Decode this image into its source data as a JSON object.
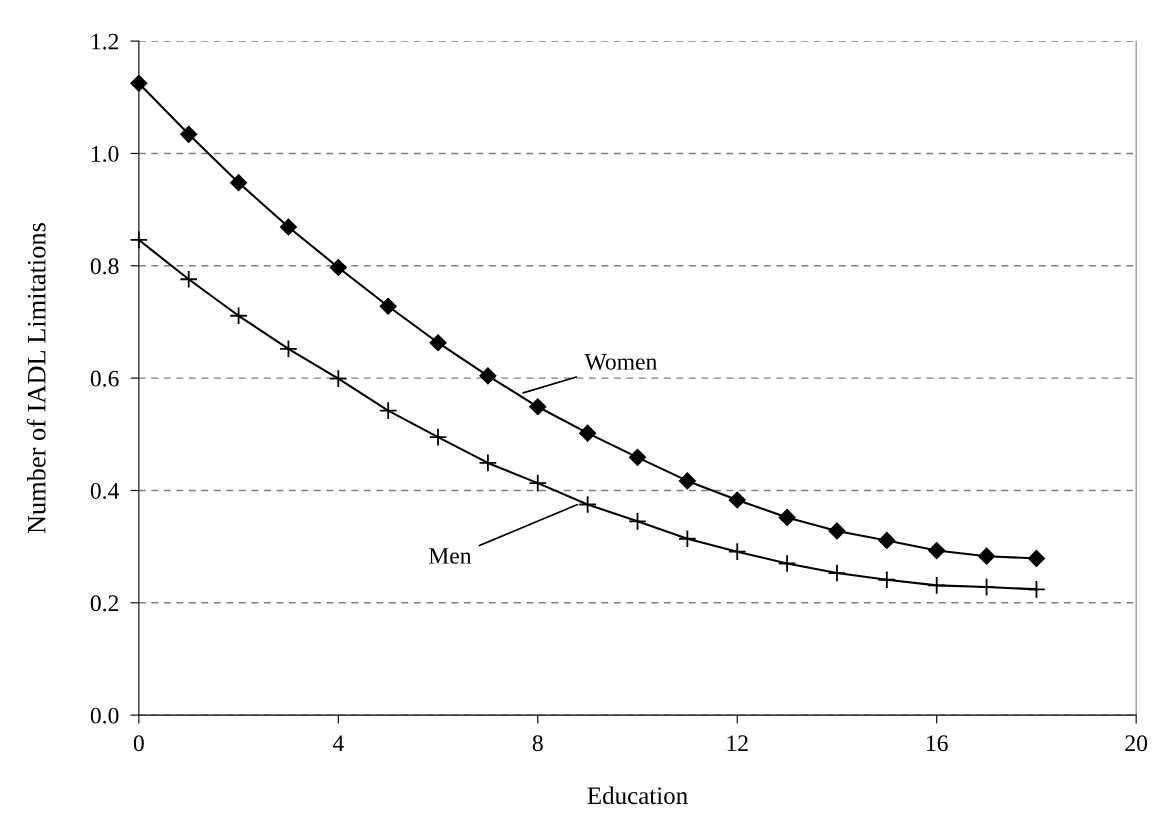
{
  "chart_data": {
    "type": "line",
    "xlabel": "Education",
    "ylabel": "Number of IADL Limitations",
    "x": [
      0,
      1,
      2,
      3,
      4,
      5,
      6,
      7,
      8,
      9,
      10,
      11,
      12,
      13,
      14,
      15,
      16,
      17,
      18
    ],
    "series": [
      {
        "name": "Women",
        "color": "#000000",
        "marker": "diamond",
        "values": [
          1.125,
          1.034,
          0.948,
          0.869,
          0.797,
          0.728,
          0.663,
          0.604,
          0.549,
          0.502,
          0.459,
          0.417,
          0.383,
          0.352,
          0.328,
          0.311,
          0.293,
          0.283,
          0.279
        ]
      },
      {
        "name": "Men",
        "color": "#000000",
        "marker": "cross",
        "values": [
          0.846,
          0.776,
          0.711,
          0.652,
          0.599,
          0.542,
          0.495,
          0.449,
          0.413,
          0.375,
          0.345,
          0.314,
          0.291,
          0.27,
          0.253,
          0.241,
          0.231,
          0.228,
          0.224
        ]
      }
    ],
    "xlim": [
      0,
      20
    ],
    "xticks": [
      0,
      4,
      8,
      12,
      16,
      20
    ],
    "ylim": [
      0,
      1.2
    ],
    "yticks": [
      {
        "value": 0,
        "label": "0.0"
      },
      {
        "value": 0.2,
        "label": "0.2"
      },
      {
        "value": 0.4,
        "label": "0.4"
      },
      {
        "value": 0.6,
        "label": "0.6"
      },
      {
        "value": 0.8,
        "label": "0.8"
      },
      {
        "value": 1.0,
        "label": "1.0"
      },
      {
        "value": 1.2,
        "label": "1.2"
      }
    ],
    "grid": "y",
    "line_style": "solid",
    "legend": false
  }
}
